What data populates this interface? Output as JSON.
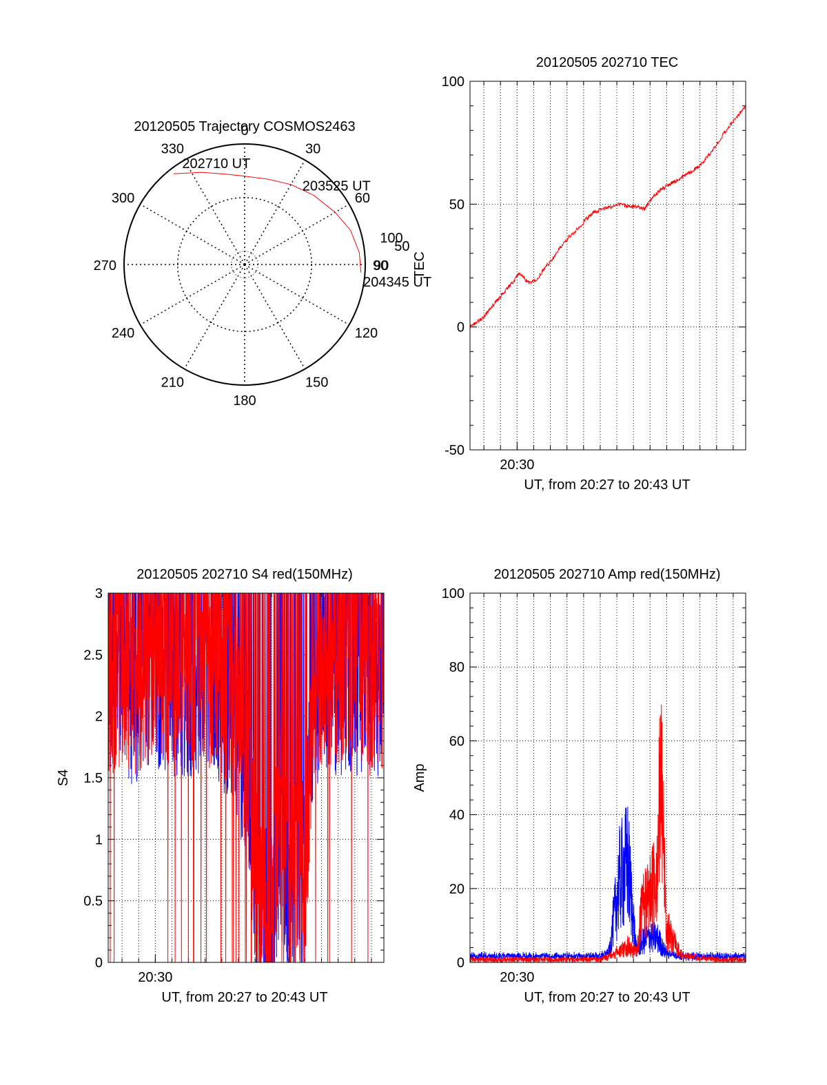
{
  "chart_data": [
    {
      "id": "trajectory",
      "type": "polar",
      "title": "20120505 Trajectory COSMOS2463",
      "r_range": [
        0,
        90
      ],
      "r_ring_labels": [
        "50",
        "90"
      ],
      "angle_labels": [
        "0",
        "30",
        "60",
        "90",
        "120",
        "150",
        "180",
        "210",
        "240",
        "270",
        "300",
        "330"
      ],
      "grid": true,
      "track": {
        "color": "#ff0000",
        "points": [
          {
            "az": 322,
            "r": 86
          },
          {
            "az": 335,
            "r": 76
          },
          {
            "az": 348,
            "r": 69
          },
          {
            "az": 0,
            "r": 66
          },
          {
            "az": 15,
            "r": 66
          },
          {
            "az": 30,
            "r": 69
          },
          {
            "az": 45,
            "r": 73
          },
          {
            "az": 60,
            "r": 78
          },
          {
            "az": 72,
            "r": 83
          },
          {
            "az": 84,
            "r": 86
          },
          {
            "az": 94,
            "r": 87
          }
        ],
        "labels": [
          {
            "text": "202710 UT",
            "az": 328,
            "r": 86
          },
          {
            "text": "203525 UT",
            "az": 38,
            "r": 70
          },
          {
            "text": "204345 UT",
            "az": 96,
            "r": 89
          }
        ]
      },
      "side_label": "100"
    },
    {
      "id": "tec",
      "type": "line",
      "title": "20120505 202710 TEC",
      "xlabel": "UT, from 20:27 to 20:43 UT",
      "ylabel": "TEC",
      "x_range": [
        "20:27:10",
        "20:43:45"
      ],
      "x_ticks": [
        "20:30"
      ],
      "ylim": [
        -50,
        100
      ],
      "y_ticks": [
        "-50",
        "0",
        "50",
        "100"
      ],
      "grid": true,
      "series": [
        {
          "color": "#ff0000",
          "x": [
            "20:27:10",
            "20:28:00",
            "20:28:40",
            "20:29:20",
            "20:29:50",
            "20:30:10",
            "20:30:40",
            "20:31:10",
            "20:31:40",
            "20:32:10",
            "20:32:40",
            "20:33:10",
            "20:33:40",
            "20:34:10",
            "20:34:40",
            "20:35:10",
            "20:35:40",
            "20:36:10",
            "20:36:40",
            "20:37:10",
            "20:37:40",
            "20:38:10",
            "20:38:40",
            "20:39:10",
            "20:39:40",
            "20:40:10",
            "20:40:40",
            "20:41:10",
            "20:41:40",
            "20:42:10",
            "20:42:40",
            "20:43:10",
            "20:43:45"
          ],
          "values": [
            0,
            4,
            10,
            15,
            19,
            22,
            18,
            19,
            24,
            28,
            33,
            37,
            40,
            44,
            47,
            48,
            49,
            50,
            49,
            49,
            48,
            53,
            56,
            58,
            60,
            62,
            64,
            67,
            71,
            76,
            81,
            85,
            90
          ]
        }
      ]
    },
    {
      "id": "s4",
      "type": "line",
      "title": "20120505 202710 S4 red(150MHz)",
      "xlabel": "UT, from 20:27 to 20:43 UT",
      "ylabel": "S4",
      "x_range": [
        "20:27:10",
        "20:43:45"
      ],
      "x_ticks": [
        "20:30"
      ],
      "ylim": [
        0,
        3
      ],
      "y_ticks": [
        "0",
        "0.5",
        "1",
        "1.5",
        "2",
        "2.5",
        "3"
      ],
      "grid": true,
      "series": [
        {
          "color": "#0000ff",
          "x": [
            "20:27:10",
            "20:28:00",
            "20:29:00",
            "20:30:00",
            "20:31:00",
            "20:32:00",
            "20:33:00",
            "20:34:00",
            "20:35:00",
            "20:35:40",
            "20:36:10",
            "20:36:40",
            "20:37:00",
            "20:37:30",
            "20:38:00",
            "20:38:30",
            "20:39:00",
            "20:39:30",
            "20:40:00",
            "20:41:00",
            "20:42:00",
            "20:43:00",
            "20:43:45"
          ],
          "values": [
            2.4,
            2.3,
            2.2,
            2.4,
            2.2,
            2.3,
            2.3,
            2.2,
            1.9,
            1.4,
            0.5,
            0.3,
            0.3,
            1.1,
            0.5,
            0.7,
            0.6,
            2.2,
            2.3,
            2.3,
            2.3,
            2.3,
            2.2
          ]
        },
        {
          "color": "#ff0000",
          "x": [
            "20:27:10",
            "20:28:00",
            "20:29:00",
            "20:30:00",
            "20:31:00",
            "20:32:00",
            "20:33:00",
            "20:34:00",
            "20:35:00",
            "20:35:40",
            "20:36:10",
            "20:36:40",
            "20:37:00",
            "20:37:30",
            "20:38:00",
            "20:38:30",
            "20:39:00",
            "20:39:30",
            "20:40:00",
            "20:41:00",
            "20:42:00",
            "20:43:00",
            "20:43:45"
          ],
          "values": [
            2.3,
            2.4,
            2.3,
            2.5,
            2.3,
            2.4,
            2.4,
            2.3,
            2.0,
            1.5,
            0.5,
            0.3,
            0.35,
            1.3,
            0.6,
            0.75,
            0.65,
            2.3,
            2.4,
            2.4,
            2.4,
            2.3,
            2.3
          ]
        }
      ]
    },
    {
      "id": "amp",
      "type": "line",
      "title": "20120505 202710 Amp red(150MHz)",
      "xlabel": "UT, from 20:27 to 20:43 UT",
      "ylabel": "Amp",
      "x_range": [
        "20:27:10",
        "20:43:45"
      ],
      "x_ticks": [
        "20:30"
      ],
      "ylim": [
        0,
        100
      ],
      "y_ticks": [
        "0",
        "20",
        "40",
        "60",
        "80",
        "100"
      ],
      "grid": true,
      "series": [
        {
          "color": "#0000ff",
          "x": [
            "20:27:10",
            "20:30:00",
            "20:33:00",
            "20:35:00",
            "20:35:30",
            "20:36:10",
            "20:36:40",
            "20:37:10",
            "20:37:30",
            "20:38:00",
            "20:38:30",
            "20:39:00",
            "20:40:00",
            "20:42:00",
            "20:43:45"
          ],
          "values": [
            1,
            1,
            1,
            1,
            2,
            25,
            30,
            4,
            6,
            8,
            7,
            2,
            1,
            1,
            1
          ]
        },
        {
          "color": "#ff0000",
          "x": [
            "20:27:10",
            "20:30:00",
            "20:33:00",
            "20:35:00",
            "20:35:30",
            "20:36:10",
            "20:36:40",
            "20:37:10",
            "20:37:30",
            "20:38:00",
            "20:38:20",
            "20:38:40",
            "20:39:00",
            "20:40:00",
            "20:42:00",
            "20:43:45"
          ],
          "values": [
            0,
            0,
            0,
            0,
            1,
            3,
            5,
            2,
            15,
            20,
            26,
            54,
            10,
            1,
            0,
            0
          ]
        }
      ]
    }
  ]
}
